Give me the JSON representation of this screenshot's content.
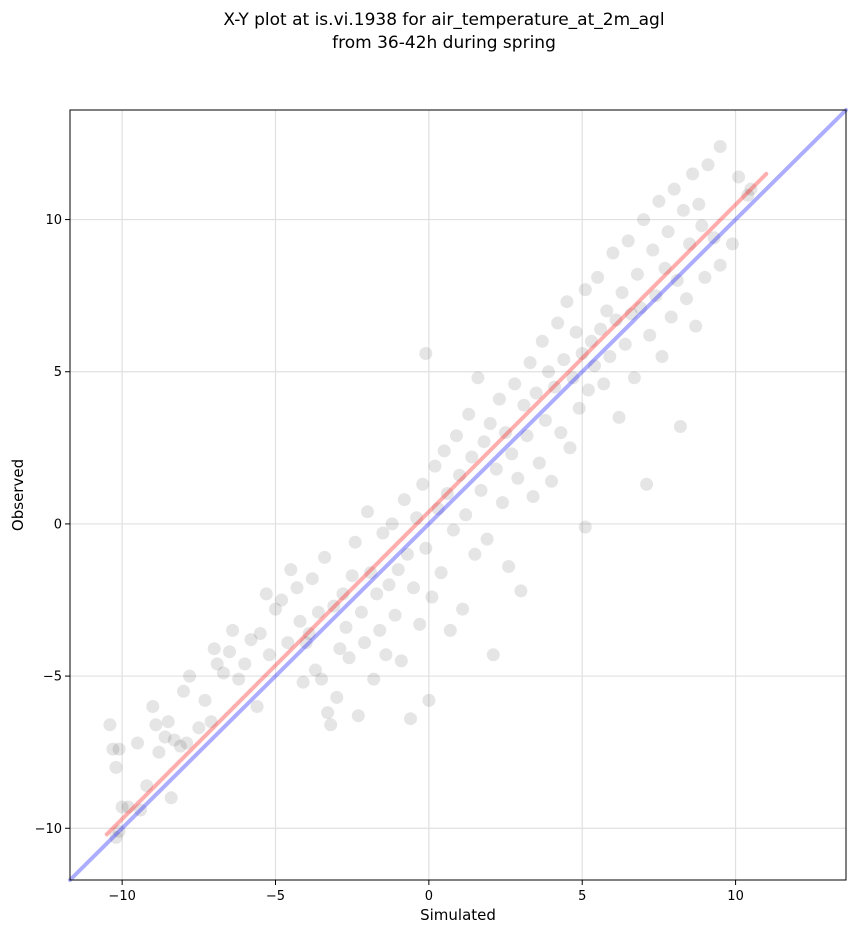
{
  "chart_data": {
    "type": "scatter",
    "title_line1": "X-Y plot at is.vi.1938 for air_temperature_at_2m_agl",
    "title_line2": "from 36-42h during spring",
    "xlabel": "Simulated",
    "ylabel": "Observed",
    "xlim": [
      -11.7,
      13.6
    ],
    "ylim": [
      -11.7,
      13.6
    ],
    "xticks": [
      -10,
      -5,
      0,
      5,
      10
    ],
    "yticks": [
      -10,
      -5,
      0,
      5,
      10
    ],
    "xtick_labels": [
      "−10",
      "−5",
      "0",
      "5",
      "10"
    ],
    "ytick_labels": [
      "−10",
      "−5",
      "0",
      "5",
      "10"
    ],
    "grid": true,
    "point_color": "#000000",
    "point_alpha": 0.1,
    "series": [
      {
        "values_xy": [
          [
            -10.4,
            -6.6
          ],
          [
            -10.3,
            -7.4
          ],
          [
            -10.1,
            -7.4
          ],
          [
            -10.2,
            -8.0
          ],
          [
            -10.0,
            -9.3
          ],
          [
            -10.1,
            -10.1
          ],
          [
            -10.2,
            -10.3
          ],
          [
            -9.5,
            -7.2
          ],
          [
            -9.8,
            -9.3
          ],
          [
            -9.4,
            -9.4
          ],
          [
            -9.2,
            -8.6
          ],
          [
            -9.0,
            -6.0
          ],
          [
            -8.9,
            -6.6
          ],
          [
            -8.8,
            -7.5
          ],
          [
            -8.6,
            -7.0
          ],
          [
            -8.5,
            -6.5
          ],
          [
            -8.4,
            -9.0
          ],
          [
            -8.3,
            -7.1
          ],
          [
            -8.1,
            -7.3
          ],
          [
            -8.0,
            -5.5
          ],
          [
            -7.9,
            -7.2
          ],
          [
            -7.8,
            -5.0
          ],
          [
            -7.5,
            -6.7
          ],
          [
            -7.3,
            -5.8
          ],
          [
            -7.1,
            -6.5
          ],
          [
            -7.0,
            -4.1
          ],
          [
            -6.9,
            -4.6
          ],
          [
            -6.7,
            -4.9
          ],
          [
            -6.5,
            -4.2
          ],
          [
            -6.4,
            -3.5
          ],
          [
            -6.2,
            -5.1
          ],
          [
            -6.0,
            -4.6
          ],
          [
            -5.8,
            -3.8
          ],
          [
            -5.6,
            -6.0
          ],
          [
            -5.5,
            -3.6
          ],
          [
            -5.3,
            -2.3
          ],
          [
            -5.2,
            -4.3
          ],
          [
            -5.0,
            -2.8
          ],
          [
            -4.8,
            -2.5
          ],
          [
            -4.6,
            -3.9
          ],
          [
            -4.5,
            -1.5
          ],
          [
            -4.3,
            -2.1
          ],
          [
            -4.2,
            -3.2
          ],
          [
            -4.1,
            -5.2
          ],
          [
            -4.0,
            -3.9
          ],
          [
            -3.9,
            -3.6
          ],
          [
            -3.8,
            -1.8
          ],
          [
            -3.7,
            -4.8
          ],
          [
            -3.6,
            -2.9
          ],
          [
            -3.5,
            -5.1
          ],
          [
            -3.4,
            -1.1
          ],
          [
            -3.3,
            -6.2
          ],
          [
            -3.2,
            -6.6
          ],
          [
            -3.1,
            -2.7
          ],
          [
            -3.0,
            -5.7
          ],
          [
            -2.9,
            -4.1
          ],
          [
            -2.8,
            -2.3
          ],
          [
            -2.7,
            -3.4
          ],
          [
            -2.6,
            -4.4
          ],
          [
            -2.5,
            -1.7
          ],
          [
            -2.4,
            -0.6
          ],
          [
            -2.3,
            -6.3
          ],
          [
            -2.2,
            -2.9
          ],
          [
            -2.1,
            -3.9
          ],
          [
            -2.0,
            0.4
          ],
          [
            -1.9,
            -1.6
          ],
          [
            -1.8,
            -5.1
          ],
          [
            -1.7,
            -2.3
          ],
          [
            -1.6,
            -3.5
          ],
          [
            -1.5,
            -0.3
          ],
          [
            -1.4,
            -4.3
          ],
          [
            -1.3,
            -2.0
          ],
          [
            -1.2,
            0.0
          ],
          [
            -1.1,
            -3.0
          ],
          [
            -1.0,
            -1.5
          ],
          [
            -0.9,
            -4.5
          ],
          [
            -0.8,
            0.8
          ],
          [
            -0.7,
            -1.0
          ],
          [
            -0.6,
            -6.4
          ],
          [
            -0.5,
            -2.1
          ],
          [
            -0.4,
            0.2
          ],
          [
            -0.3,
            -3.3
          ],
          [
            -0.2,
            1.3
          ],
          [
            -0.1,
            -0.8
          ],
          [
            -0.1,
            5.6
          ],
          [
            0.0,
            -5.8
          ],
          [
            0.1,
            -2.4
          ],
          [
            0.2,
            1.9
          ],
          [
            0.3,
            0.5
          ],
          [
            0.4,
            -1.6
          ],
          [
            0.5,
            2.4
          ],
          [
            0.6,
            1.0
          ],
          [
            0.7,
            -3.5
          ],
          [
            0.8,
            -0.2
          ],
          [
            0.9,
            2.9
          ],
          [
            1.0,
            1.6
          ],
          [
            1.1,
            -2.8
          ],
          [
            1.2,
            0.3
          ],
          [
            1.3,
            3.6
          ],
          [
            1.4,
            2.2
          ],
          [
            1.5,
            -1.0
          ],
          [
            1.6,
            4.8
          ],
          [
            1.7,
            1.1
          ],
          [
            1.8,
            2.7
          ],
          [
            1.9,
            -0.5
          ],
          [
            2.0,
            3.3
          ],
          [
            2.1,
            -4.3
          ],
          [
            2.2,
            1.8
          ],
          [
            2.3,
            4.1
          ],
          [
            2.4,
            0.7
          ],
          [
            2.5,
            3.0
          ],
          [
            2.6,
            -1.4
          ],
          [
            2.7,
            2.3
          ],
          [
            2.8,
            4.6
          ],
          [
            2.9,
            1.5
          ],
          [
            3.0,
            -2.2
          ],
          [
            3.1,
            3.9
          ],
          [
            3.2,
            2.9
          ],
          [
            3.3,
            5.3
          ],
          [
            3.4,
            0.9
          ],
          [
            3.5,
            4.3
          ],
          [
            3.6,
            2.0
          ],
          [
            3.7,
            6.0
          ],
          [
            3.8,
            3.4
          ],
          [
            3.9,
            5.0
          ],
          [
            4.0,
            1.4
          ],
          [
            4.1,
            4.5
          ],
          [
            4.2,
            6.6
          ],
          [
            4.3,
            3.0
          ],
          [
            4.4,
            5.4
          ],
          [
            4.5,
            7.3
          ],
          [
            4.6,
            2.5
          ],
          [
            4.7,
            4.8
          ],
          [
            4.8,
            6.3
          ],
          [
            4.9,
            3.8
          ],
          [
            5.0,
            5.6
          ],
          [
            5.1,
            7.7
          ],
          [
            5.1,
            -0.1
          ],
          [
            5.2,
            4.4
          ],
          [
            5.3,
            6.0
          ],
          [
            5.4,
            5.2
          ],
          [
            5.5,
            8.1
          ],
          [
            5.6,
            6.4
          ],
          [
            5.7,
            4.6
          ],
          [
            5.8,
            7.0
          ],
          [
            5.9,
            5.5
          ],
          [
            6.0,
            8.9
          ],
          [
            6.1,
            6.7
          ],
          [
            6.2,
            3.5
          ],
          [
            6.3,
            7.6
          ],
          [
            6.4,
            5.9
          ],
          [
            6.5,
            9.3
          ],
          [
            6.6,
            6.9
          ],
          [
            6.7,
            4.8
          ],
          [
            6.8,
            8.2
          ],
          [
            6.9,
            7.1
          ],
          [
            7.0,
            10.0
          ],
          [
            7.1,
            1.3
          ],
          [
            7.2,
            6.2
          ],
          [
            7.3,
            9.0
          ],
          [
            7.4,
            7.5
          ],
          [
            7.5,
            10.6
          ],
          [
            7.6,
            5.5
          ],
          [
            7.7,
            8.4
          ],
          [
            7.8,
            9.6
          ],
          [
            7.9,
            6.8
          ],
          [
            8.0,
            11.0
          ],
          [
            8.1,
            8.0
          ],
          [
            8.2,
            3.2
          ],
          [
            8.3,
            10.3
          ],
          [
            8.4,
            7.4
          ],
          [
            8.5,
            9.2
          ],
          [
            8.6,
            11.5
          ],
          [
            8.7,
            6.5
          ],
          [
            8.8,
            10.5
          ],
          [
            8.9,
            9.8
          ],
          [
            9.0,
            8.1
          ],
          [
            9.1,
            11.8
          ],
          [
            9.3,
            9.4
          ],
          [
            9.5,
            12.4
          ],
          [
            9.5,
            8.5
          ],
          [
            9.9,
            9.2
          ],
          [
            10.1,
            11.4
          ],
          [
            10.4,
            10.8
          ],
          [
            10.5,
            11.0
          ]
        ]
      }
    ],
    "fit_lines": [
      {
        "color": "#ff0000",
        "from": [
          -10.5,
          -10.2
        ],
        "to": [
          11.0,
          11.5
        ]
      },
      {
        "color": "#0000ff",
        "from": [
          -11.7,
          -11.7
        ],
        "to": [
          13.6,
          13.6
        ]
      }
    ]
  }
}
